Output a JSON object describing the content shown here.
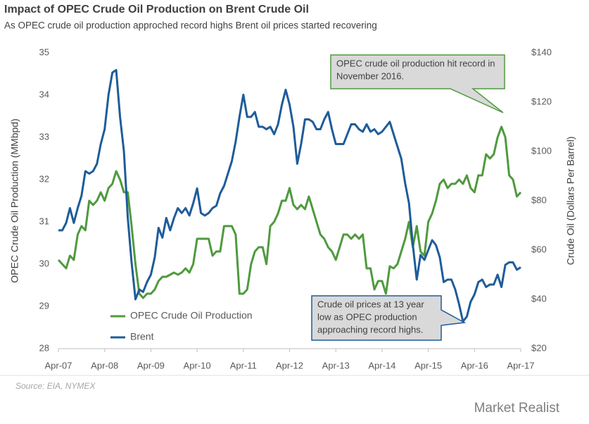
{
  "chart_data": {
    "type": "line",
    "title": "Impact of OPEC Crude Oil Production on Brent Crude Oil",
    "subtitle": "As OPEC crude oil production approched record highs Brent oil prices started recovering",
    "y_label": "OPEC Crude Oil Production  (MMbpd)",
    "y2_label": "Crude Oil (Dollars Per Barrel)",
    "source": "Source: EIA, NYMEX",
    "logo": "Market Realist",
    "categories": [
      "Apr-07",
      null,
      null,
      null,
      null,
      null,
      null,
      null,
      null,
      null,
      null,
      null,
      "Apr-08",
      null,
      null,
      null,
      null,
      null,
      null,
      null,
      null,
      null,
      null,
      null,
      "Apr-09",
      null,
      null,
      null,
      null,
      null,
      null,
      null,
      null,
      null,
      null,
      null,
      "Apr-10",
      null,
      null,
      null,
      null,
      null,
      null,
      null,
      null,
      null,
      null,
      null,
      "Apr-11",
      null,
      null,
      null,
      null,
      null,
      null,
      null,
      null,
      null,
      null,
      null,
      "Apr-12",
      null,
      null,
      null,
      null,
      null,
      null,
      null,
      null,
      null,
      null,
      null,
      "Apr-13",
      null,
      null,
      null,
      null,
      null,
      null,
      null,
      null,
      null,
      null,
      null,
      "Apr-14",
      null,
      null,
      null,
      null,
      null,
      null,
      null,
      null,
      null,
      null,
      null,
      "Apr-15",
      null,
      null,
      null,
      null,
      null,
      null,
      null,
      null,
      null,
      null,
      null,
      "Apr-16",
      null,
      null,
      null,
      null,
      null,
      null,
      null,
      null,
      null,
      null,
      null,
      "Apr-17"
    ],
    "series": [
      {
        "name": "OPEC Crude Oil Production",
        "color": "#4f9a3e",
        "values": [
          30.1,
          30.0,
          29.9,
          30.2,
          30.1,
          30.7,
          30.9,
          30.8,
          31.5,
          31.4,
          31.5,
          31.7,
          31.5,
          31.8,
          31.9,
          32.2,
          32.0,
          31.7,
          31.7,
          30.9,
          30.0,
          29.3,
          29.2,
          29.3,
          29.3,
          29.4,
          29.6,
          29.7,
          29.7,
          29.75,
          29.8,
          29.75,
          29.8,
          29.9,
          29.8,
          30.0,
          30.6,
          30.6,
          30.6,
          30.6,
          30.2,
          30.3,
          30.3,
          30.9,
          30.9,
          30.9,
          30.7,
          29.3,
          29.3,
          29.4,
          30.0,
          30.3,
          30.4,
          30.4,
          30.0,
          30.9,
          31.0,
          31.2,
          31.5,
          31.5,
          31.8,
          31.4,
          31.3,
          31.4,
          31.3,
          31.6,
          31.3,
          31.0,
          30.7,
          30.6,
          30.4,
          30.3,
          30.1,
          30.4,
          30.7,
          30.7,
          30.6,
          30.7,
          30.6,
          30.7,
          29.9,
          29.9,
          29.4,
          29.6,
          29.6,
          29.3,
          29.95,
          29.9,
          30.0,
          30.3,
          30.6,
          31.0,
          30.4,
          30.9,
          30.3,
          30.2,
          31.0,
          31.2,
          31.5,
          31.9,
          32.0,
          31.8,
          31.9,
          31.9,
          32.0,
          31.9,
          32.1,
          31.8,
          31.7,
          32.1,
          32.1,
          32.6,
          32.5,
          32.6,
          33.0,
          33.25,
          33.0,
          32.1,
          32.0,
          31.6,
          31.7
        ]
      },
      {
        "name": "Brent",
        "color": "#1f5c99",
        "axis": "y2",
        "values": [
          68,
          68,
          71,
          77,
          71,
          77,
          82,
          92,
          91,
          92,
          95,
          103,
          109,
          123,
          132,
          133,
          114,
          100,
          73,
          55,
          40,
          44,
          43,
          47,
          50,
          57,
          69,
          65,
          73,
          68,
          73,
          77,
          75,
          77,
          74,
          79,
          85,
          75,
          74,
          75,
          77,
          78,
          83,
          86,
          91,
          96,
          104,
          114,
          123,
          114,
          114,
          116,
          110,
          110,
          109,
          110,
          107,
          111,
          119,
          125,
          119,
          110,
          95,
          103,
          113,
          113,
          112,
          109,
          109,
          113,
          116,
          109,
          103,
          103,
          103,
          107,
          111,
          111,
          109,
          108,
          111,
          108,
          109,
          107,
          108,
          110,
          112,
          107,
          102,
          97,
          87,
          79,
          62,
          48,
          58,
          56,
          60,
          64,
          62,
          57,
          47,
          48,
          48,
          44,
          38,
          31,
          33,
          39,
          42,
          47,
          48,
          45,
          46,
          46,
          50,
          45,
          54,
          55,
          55,
          52,
          53
        ]
      }
    ],
    "ylim": [
      28,
      35
    ],
    "yticks": [
      28,
      29,
      30,
      31,
      32,
      33,
      34,
      35
    ],
    "y2lim": [
      20,
      140
    ],
    "y2ticks": [
      {
        "value": 20,
        "label": "$20"
      },
      {
        "value": 40,
        "label": "$40"
      },
      {
        "value": 60,
        "label": "$60"
      },
      {
        "value": 80,
        "label": "$80"
      },
      {
        "value": 100,
        "label": "$100"
      },
      {
        "value": 120,
        "label": "$120"
      },
      {
        "value": 140,
        "label": "$140"
      }
    ],
    "annotations": [
      {
        "lines": [
          "OPEC crude oil production hit record in",
          "November 2016."
        ]
      },
      {
        "lines": [
          "Crude oil prices at 13 year",
          "low as OPEC production",
          "approaching record highs."
        ]
      }
    ]
  }
}
